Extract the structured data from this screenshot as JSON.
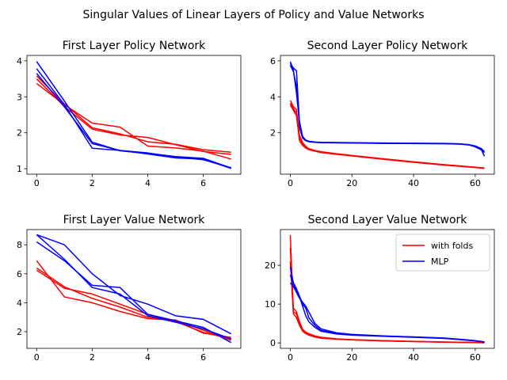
{
  "figure": {
    "suptitle": "Singular Values of Linear Layers of Policy and Value Networks",
    "series_colors": {
      "with folds": "#ff0000",
      "MLP": "#0000ff"
    },
    "legend": {
      "entries": [
        "with folds",
        "MLP"
      ],
      "placement": "upper right of bottom-right panel"
    }
  },
  "chart_data": [
    {
      "type": "line",
      "title": "First Layer Policy Network",
      "xlim": [
        -0.35,
        7.35
      ],
      "ylim": [
        0.85,
        4.15
      ],
      "xticks": [
        0,
        2,
        4,
        6
      ],
      "yticks": [
        1,
        2,
        3,
        4
      ],
      "series": [
        {
          "group": "with folds",
          "x": [
            0,
            1,
            2,
            3,
            4,
            5,
            6,
            7
          ],
          "y": [
            3.37,
            2.78,
            2.27,
            2.16,
            1.63,
            1.58,
            1.49,
            1.27
          ]
        },
        {
          "group": "with folds",
          "x": [
            0,
            1,
            2,
            3,
            4,
            5,
            6,
            7
          ],
          "y": [
            3.58,
            2.8,
            2.14,
            1.97,
            1.75,
            1.68,
            1.53,
            1.46
          ]
        },
        {
          "group": "with folds",
          "x": [
            0,
            1,
            2,
            3,
            4,
            5,
            6,
            7
          ],
          "y": [
            3.5,
            2.73,
            2.1,
            1.94,
            1.87,
            1.67,
            1.48,
            1.4
          ]
        },
        {
          "group": "MLP",
          "x": [
            0,
            1,
            2,
            3,
            4,
            5,
            6,
            7
          ],
          "y": [
            3.98,
            2.88,
            1.74,
            1.5,
            1.43,
            1.34,
            1.29,
            1.02
          ]
        },
        {
          "group": "MLP",
          "x": [
            0,
            1,
            2,
            3,
            4,
            5,
            6,
            7
          ],
          "y": [
            3.78,
            2.78,
            1.57,
            1.51,
            1.41,
            1.3,
            1.27,
            1.01
          ]
        },
        {
          "group": "MLP",
          "x": [
            0,
            1,
            2,
            3,
            4,
            5,
            6,
            7
          ],
          "y": [
            3.65,
            2.72,
            1.7,
            1.51,
            1.44,
            1.33,
            1.25,
            1.03
          ]
        }
      ]
    },
    {
      "type": "line",
      "title": "Second Layer Policy Network",
      "xlim": [
        -3.2,
        66.2
      ],
      "ylim": [
        -0.3,
        6.3
      ],
      "xticks": [
        0,
        20,
        40,
        60
      ],
      "yticks": [
        2,
        4,
        6
      ],
      "series": [
        {
          "group": "with folds",
          "x": [
            0,
            1,
            2,
            3,
            4,
            5,
            6,
            8,
            10,
            15,
            20,
            30,
            40,
            50,
            60,
            63
          ],
          "y": [
            3.8,
            3.45,
            3.3,
            1.7,
            1.4,
            1.2,
            1.1,
            1.0,
            0.93,
            0.83,
            0.73,
            0.55,
            0.38,
            0.22,
            0.08,
            0.03
          ]
        },
        {
          "group": "with folds",
          "x": [
            0,
            1,
            2,
            3,
            4,
            5,
            6,
            8,
            10,
            15,
            20,
            30,
            40,
            50,
            60,
            63
          ],
          "y": [
            3.55,
            3.25,
            2.95,
            1.55,
            1.3,
            1.15,
            1.06,
            0.98,
            0.9,
            0.8,
            0.71,
            0.53,
            0.36,
            0.2,
            0.07,
            0.02
          ]
        },
        {
          "group": "with folds",
          "x": [
            0,
            1,
            2,
            3,
            4,
            5,
            6,
            8,
            10,
            15,
            20,
            30,
            40,
            50,
            60,
            63
          ],
          "y": [
            3.65,
            3.35,
            3.1,
            1.85,
            1.45,
            1.25,
            1.12,
            1.02,
            0.95,
            0.84,
            0.74,
            0.56,
            0.39,
            0.23,
            0.09,
            0.04
          ]
        },
        {
          "group": "MLP",
          "x": [
            0,
            1,
            2,
            3,
            4,
            5,
            6,
            8,
            10,
            20,
            30,
            40,
            50,
            55,
            58,
            60,
            62,
            63
          ],
          "y": [
            5.95,
            5.5,
            4.2,
            2.6,
            1.8,
            1.58,
            1.52,
            1.48,
            1.46,
            1.44,
            1.42,
            1.41,
            1.4,
            1.38,
            1.33,
            1.25,
            1.1,
            0.9
          ]
        },
        {
          "group": "MLP",
          "x": [
            0,
            1,
            2,
            3,
            4,
            5,
            6,
            8,
            10,
            20,
            30,
            40,
            50,
            55,
            58,
            60,
            62,
            63
          ],
          "y": [
            5.75,
            5.4,
            4.6,
            2.3,
            1.7,
            1.56,
            1.5,
            1.47,
            1.45,
            1.43,
            1.41,
            1.4,
            1.39,
            1.37,
            1.32,
            1.22,
            1.05,
            0.7
          ]
        },
        {
          "group": "MLP",
          "x": [
            0,
            1,
            2,
            3,
            4,
            5,
            6,
            8,
            10,
            20,
            30,
            40,
            50,
            55,
            58,
            60,
            62,
            63
          ],
          "y": [
            5.85,
            5.6,
            5.45,
            2.5,
            1.75,
            1.6,
            1.53,
            1.49,
            1.47,
            1.45,
            1.43,
            1.42,
            1.41,
            1.39,
            1.34,
            1.27,
            1.12,
            0.95
          ]
        }
      ]
    },
    {
      "type": "line",
      "title": "First Layer Value Network",
      "xlim": [
        -0.35,
        7.35
      ],
      "ylim": [
        0.85,
        9.05
      ],
      "xticks": [
        0,
        2,
        4,
        6
      ],
      "yticks": [
        2,
        4,
        6,
        8
      ],
      "series": [
        {
          "group": "with folds",
          "x": [
            0,
            1,
            2,
            3,
            4,
            5,
            6,
            7
          ],
          "y": [
            6.9,
            4.4,
            4.0,
            3.4,
            2.9,
            2.8,
            1.9,
            1.6
          ]
        },
        {
          "group": "with folds",
          "x": [
            0,
            1,
            2,
            3,
            4,
            5,
            6,
            7
          ],
          "y": [
            6.4,
            5.1,
            4.3,
            3.7,
            3.0,
            2.8,
            2.1,
            1.4
          ]
        },
        {
          "group": "with folds",
          "x": [
            0,
            1,
            2,
            3,
            4,
            5,
            6,
            7
          ],
          "y": [
            6.25,
            5.0,
            4.6,
            3.9,
            3.2,
            2.7,
            1.95,
            1.5
          ]
        },
        {
          "group": "MLP",
          "x": [
            0,
            1,
            2,
            3,
            4,
            5,
            6,
            7
          ],
          "y": [
            8.7,
            8.0,
            6.0,
            4.5,
            3.9,
            3.1,
            2.85,
            1.85
          ]
        },
        {
          "group": "MLP",
          "x": [
            0,
            1,
            2,
            3,
            4,
            5,
            6,
            7
          ],
          "y": [
            8.2,
            6.9,
            5.2,
            5.05,
            3.2,
            2.75,
            2.3,
            1.25
          ]
        },
        {
          "group": "MLP",
          "x": [
            0,
            1,
            2,
            3,
            4,
            5,
            6,
            7
          ],
          "y": [
            8.7,
            7.0,
            5.05,
            4.6,
            3.1,
            2.65,
            2.2,
            1.5
          ]
        }
      ]
    },
    {
      "type": "line",
      "title": "Second Layer Value Network",
      "xlim": [
        -3.2,
        66.2
      ],
      "ylim": [
        -1.4,
        29.2
      ],
      "xticks": [
        0,
        20,
        40,
        60
      ],
      "yticks": [
        0,
        10,
        20
      ],
      "legend": [
        "with folds",
        "MLP"
      ],
      "series": [
        {
          "group": "with folds",
          "x": [
            0,
            1,
            2,
            3,
            4,
            5,
            6,
            8,
            10,
            15,
            20,
            30,
            40,
            50,
            60,
            63
          ],
          "y": [
            27.8,
            8.0,
            7.5,
            5.0,
            3.2,
            2.6,
            2.2,
            1.6,
            1.3,
            1.0,
            0.8,
            0.55,
            0.35,
            0.2,
            0.1,
            0.05
          ]
        },
        {
          "group": "with folds",
          "x": [
            0,
            1,
            2,
            3,
            4,
            5,
            6,
            8,
            10,
            15,
            20,
            30,
            40,
            50,
            60,
            63
          ],
          "y": [
            24.5,
            9.0,
            8.0,
            5.5,
            3.5,
            2.8,
            2.4,
            1.8,
            1.45,
            1.05,
            0.85,
            0.6,
            0.4,
            0.22,
            0.12,
            0.06
          ]
        },
        {
          "group": "with folds",
          "x": [
            0,
            1,
            2,
            3,
            4,
            5,
            6,
            8,
            10,
            15,
            20,
            30,
            40,
            50,
            60,
            63
          ],
          "y": [
            21.0,
            7.5,
            6.5,
            4.5,
            3.0,
            2.4,
            2.0,
            1.5,
            1.2,
            0.95,
            0.78,
            0.52,
            0.33,
            0.18,
            0.09,
            0.04
          ]
        },
        {
          "group": "MLP",
          "x": [
            0,
            1,
            2,
            3,
            4,
            5,
            6,
            8,
            10,
            15,
            20,
            30,
            40,
            50,
            55,
            60,
            63
          ],
          "y": [
            19.5,
            15.5,
            14.0,
            12.0,
            10.0,
            9.0,
            6.5,
            4.5,
            3.2,
            2.5,
            2.1,
            1.75,
            1.5,
            1.2,
            0.9,
            0.55,
            0.2
          ]
        },
        {
          "group": "MLP",
          "x": [
            0,
            1,
            2,
            3,
            4,
            5,
            6,
            8,
            10,
            15,
            20,
            30,
            40,
            50,
            55,
            60,
            63
          ],
          "y": [
            15.5,
            14.5,
            13.0,
            11.5,
            10.5,
            9.5,
            8.0,
            5.0,
            3.6,
            2.6,
            2.2,
            1.8,
            1.55,
            1.25,
            0.95,
            0.6,
            0.25
          ]
        },
        {
          "group": "MLP",
          "x": [
            0,
            1,
            2,
            3,
            4,
            5,
            6,
            8,
            10,
            15,
            20,
            30,
            40,
            50,
            55,
            60,
            63
          ],
          "y": [
            17.5,
            15.0,
            13.5,
            11.8,
            9.5,
            7.0,
            5.5,
            4.0,
            3.0,
            2.3,
            2.0,
            1.7,
            1.45,
            1.15,
            0.85,
            0.5,
            0.15
          ]
        }
      ]
    }
  ]
}
